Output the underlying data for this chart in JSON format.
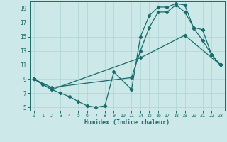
{
  "title": "",
  "xlabel": "Humidex (Indice chaleur)",
  "bg_color": "#cce8e8",
  "line_color": "#1a6b6b",
  "grid_color": "#aad4d4",
  "xlim": [
    -0.5,
    23.5
  ],
  "ylim": [
    4.5,
    20.0
  ],
  "xticks": [
    0,
    1,
    2,
    3,
    4,
    5,
    6,
    7,
    8,
    9,
    10,
    11,
    14,
    15,
    16,
    17,
    18,
    19,
    20,
    21,
    22,
    23
  ],
  "yticks": [
    5,
    7,
    9,
    11,
    13,
    15,
    17,
    19
  ],
  "line1_x": [
    0,
    1,
    2,
    3,
    4,
    5,
    6,
    7,
    8,
    9,
    11,
    14,
    15,
    16,
    17,
    18,
    19,
    20,
    21,
    22,
    23
  ],
  "line1_y": [
    9.0,
    8.2,
    7.5,
    7.0,
    6.5,
    5.8,
    5.2,
    5.0,
    5.2,
    10.0,
    7.5,
    15.0,
    18.0,
    19.2,
    19.2,
    19.7,
    19.5,
    16.2,
    14.5,
    12.5,
    11.0
  ],
  "line2_x": [
    0,
    2,
    11,
    14,
    15,
    16,
    17,
    18,
    19,
    20,
    21,
    22,
    23
  ],
  "line2_y": [
    9.0,
    7.8,
    9.2,
    13.0,
    16.3,
    18.5,
    18.5,
    19.5,
    18.5,
    16.3,
    16.0,
    12.5,
    11.0
  ],
  "line3_x": [
    0,
    2,
    14,
    19,
    23
  ],
  "line3_y": [
    9.0,
    7.5,
    12.0,
    15.2,
    11.0
  ]
}
